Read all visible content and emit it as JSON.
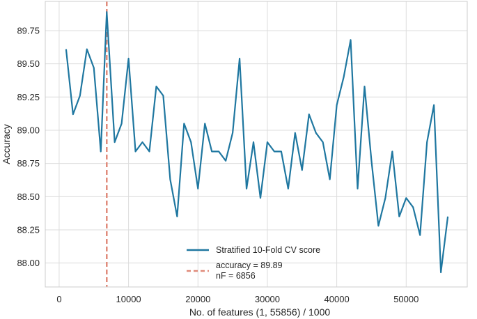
{
  "chart_data": {
    "type": "line",
    "title": "",
    "xlabel": "No. of features (1, 55856) / 1000",
    "ylabel": "Accuracy",
    "xlim": [
      -2000,
      58800
    ],
    "ylim": [
      87.82,
      89.97
    ],
    "xticks": [
      0,
      10000,
      20000,
      30000,
      40000,
      50000
    ],
    "yticks": [
      88.0,
      88.25,
      88.5,
      88.75,
      89.0,
      89.25,
      89.5,
      89.75
    ],
    "ytick_labels": [
      "88.00",
      "88.25",
      "88.50",
      "88.75",
      "89.00",
      "89.25",
      "89.50",
      "89.75"
    ],
    "grid": true,
    "legend_position": "bottom-center",
    "series": [
      {
        "name": "Stratified 10-Fold CV score",
        "color": "#1f77a0",
        "x": [
          1000,
          2000,
          3000,
          4000,
          5000,
          6000,
          6856,
          8000,
          9000,
          10000,
          11000,
          12000,
          13000,
          14000,
          15000,
          16000,
          17000,
          18000,
          19000,
          20000,
          21000,
          22000,
          23000,
          24000,
          25000,
          26000,
          27000,
          28000,
          29000,
          30000,
          31000,
          32000,
          33000,
          34000,
          35000,
          36000,
          37000,
          38000,
          39000,
          40000,
          41000,
          42000,
          43000,
          44000,
          45000,
          46000,
          47000,
          48000,
          49000,
          50000,
          51000,
          52000,
          53000,
          54000,
          55000,
          56000
        ],
        "y": [
          89.61,
          89.12,
          89.26,
          89.61,
          89.47,
          88.84,
          89.89,
          88.91,
          89.05,
          89.54,
          88.84,
          88.91,
          88.84,
          89.33,
          89.26,
          88.63,
          88.35,
          89.05,
          88.91,
          88.56,
          89.05,
          88.84,
          88.84,
          88.77,
          88.98,
          89.54,
          88.56,
          88.91,
          88.49,
          88.91,
          88.84,
          88.84,
          88.56,
          88.98,
          88.7,
          89.12,
          88.98,
          88.91,
          88.63,
          89.19,
          89.4,
          89.68,
          88.56,
          89.33,
          88.77,
          88.28,
          88.49,
          88.84,
          88.35,
          88.49,
          88.42,
          88.21,
          88.91,
          89.19,
          87.93,
          88.35
        ]
      }
    ],
    "reference_line": {
      "orientation": "vertical",
      "x": 6856,
      "color": "#dd8452",
      "style": "dashed",
      "label_line1": "accuracy = 89.89",
      "label_line2": "nF = 6856"
    }
  }
}
